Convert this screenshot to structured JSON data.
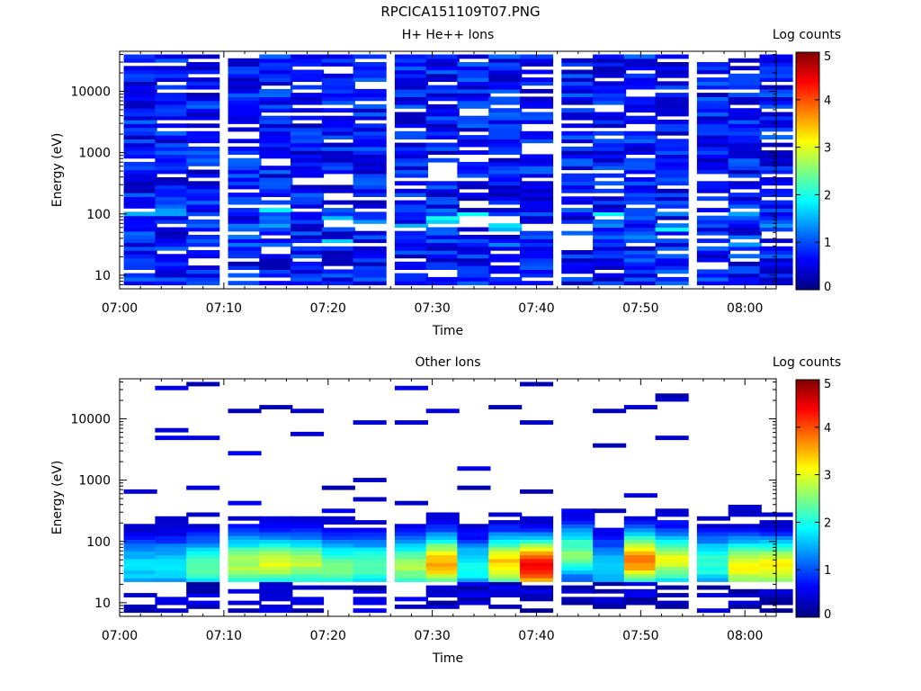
{
  "figure_title": "RPCICA151109T07.PNG",
  "chart_data": [
    {
      "type": "heatmap",
      "title": "H+ He++ Ions",
      "xlabel": "Time",
      "ylabel": "Energy (eV)",
      "colorbar_label": "Log counts",
      "xlim": [
        "07:00",
        "08:03"
      ],
      "xticks": [
        "07:00",
        "07:10",
        "07:20",
        "07:30",
        "07:40",
        "07:50",
        "08:00"
      ],
      "yscale": "log",
      "ylim": [
        6,
        45000
      ],
      "yticks": [
        "10",
        "100",
        "1000",
        "10000"
      ],
      "zlim": [
        0,
        5
      ],
      "cticks": [
        "0",
        "1",
        "2",
        "3",
        "4",
        "5"
      ],
      "colormap": "jet",
      "time_bins": [
        "07:02",
        "07:05",
        "07:08",
        "07:12",
        "07:15",
        "07:18",
        "07:21",
        "07:24",
        "07:28",
        "07:31",
        "07:34",
        "07:37",
        "07:40",
        "07:44",
        "07:47",
        "07:50",
        "07:53",
        "07:57",
        "08:00",
        "08:03"
      ],
      "energy_range_ev": [
        7,
        40000
      ],
      "energy_channels": 65,
      "max_log_counts_observed": 2.4
    },
    {
      "type": "heatmap",
      "title": "Other Ions",
      "xlabel": "Time",
      "ylabel": "Energy (eV)",
      "colorbar_label": "Log counts",
      "xlim": [
        "07:00",
        "08:03"
      ],
      "xticks": [
        "07:00",
        "07:10",
        "07:20",
        "07:30",
        "07:40",
        "07:50",
        "08:00"
      ],
      "yscale": "log",
      "ylim": [
        6,
        45000
      ],
      "yticks": [
        "10",
        "100",
        "1000",
        "10000"
      ],
      "zlim": [
        0,
        5
      ],
      "cticks": [
        "0",
        "1",
        "2",
        "3",
        "4",
        "5"
      ],
      "colormap": "jet",
      "time_bins": [
        "07:02",
        "07:05",
        "07:08",
        "07:12",
        "07:15",
        "07:18",
        "07:21",
        "07:24",
        "07:28",
        "07:31",
        "07:34",
        "07:37",
        "07:40",
        "07:44",
        "07:47",
        "07:50",
        "07:53",
        "07:57",
        "08:00",
        "08:03"
      ],
      "peak_energy_ev": [
        40,
        40,
        40,
        45,
        45,
        45,
        40,
        40,
        40,
        45,
        40,
        45,
        40,
        65,
        40,
        50,
        50,
        45,
        40,
        40
      ],
      "peak_log_counts": [
        1.6,
        1.7,
        2.2,
        2.6,
        2.8,
        2.6,
        2.3,
        2.2,
        2.5,
        3.4,
        1.8,
        3.2,
        4.2,
        2.3,
        1.6,
        3.6,
        2.8,
        2.0,
        3.0,
        3.0
      ],
      "max_log_counts_observed": 4.2
    }
  ]
}
